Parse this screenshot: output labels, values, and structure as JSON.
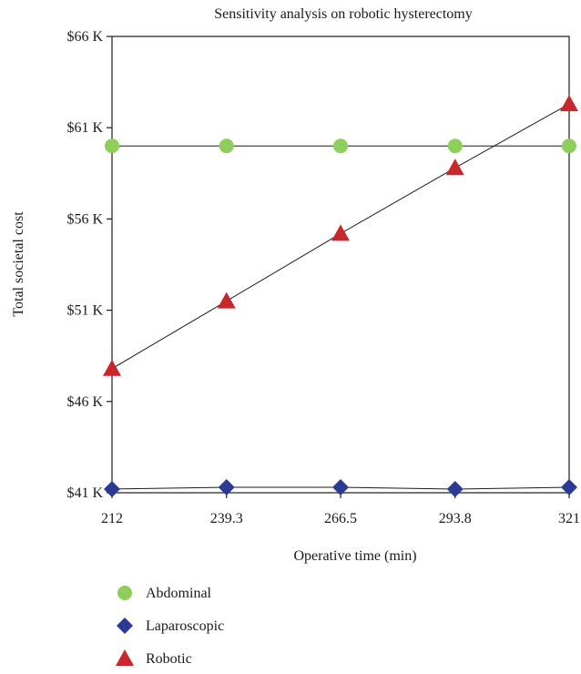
{
  "chart_data": {
    "type": "line",
    "title": "Sensitivity analysis on robotic hysterectomy",
    "xlabel": "Operative time (min)",
    "ylabel": "Total societal cost",
    "x": [
      212,
      239.3,
      266.5,
      293.8,
      321
    ],
    "x_tick_labels": [
      "212",
      "239.3",
      "266.5",
      "293.8",
      "321"
    ],
    "ylim": [
      41000,
      66000
    ],
    "y_tick_values": [
      41000,
      46000,
      51000,
      56000,
      61000,
      66000
    ],
    "y_tick_labels": [
      "$41 K",
      "$46 K",
      "$51 K",
      "$56 K",
      "$61 K",
      "$66 K"
    ],
    "grid": false,
    "legend_position": "bottom-left",
    "series": [
      {
        "name": "Abdominal",
        "marker": "circle",
        "color": "#8dcf5a",
        "values": [
          60000,
          60000,
          60000,
          60000,
          60000
        ]
      },
      {
        "name": "Laparoscopic",
        "marker": "diamond",
        "color": "#2b3a93",
        "values": [
          41200,
          41300,
          41300,
          41200,
          41300
        ]
      },
      {
        "name": "Robotic",
        "marker": "triangle",
        "color": "#c8272d",
        "values": [
          47800,
          51500,
          55200,
          58800,
          62300
        ]
      }
    ]
  }
}
